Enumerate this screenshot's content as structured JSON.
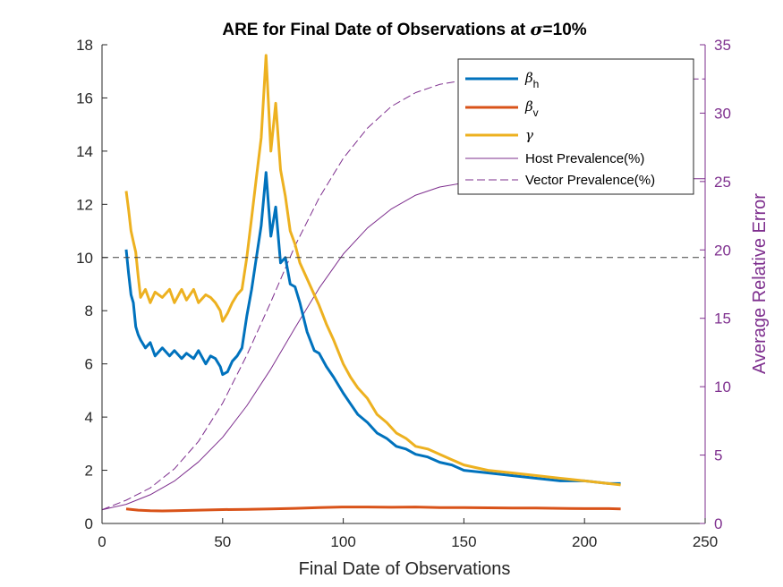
{
  "chart_data": {
    "type": "line",
    "title_prefix": "ARE for Final Date of Observations at ",
    "title_symbol": "σ",
    "title_suffix": "=10%",
    "xlabel": "Final Date of Observations",
    "ylabel_right": "Average Relative Error",
    "xlim": [
      0,
      250
    ],
    "ylim_left": [
      0,
      18
    ],
    "ylim_right": [
      0,
      35
    ],
    "xticks": [
      "0",
      "50",
      "100",
      "150",
      "200",
      "250"
    ],
    "yticks_left": [
      "0",
      "2",
      "4",
      "6",
      "8",
      "10",
      "12",
      "14",
      "16",
      "18"
    ],
    "yticks_right": [
      "0",
      "5",
      "10",
      "15",
      "20",
      "25",
      "30",
      "35"
    ],
    "reference_line": {
      "axis": "left",
      "value": 10
    },
    "colors": {
      "beta_h": "#0072BD",
      "beta_v": "#D95319",
      "gamma": "#EDB120",
      "prevalence": "#7E2F8E",
      "reference": "#404040"
    },
    "legend": {
      "position": "top-right",
      "entries": [
        {
          "symbol": "β",
          "subscript": "h"
        },
        {
          "symbol": "β",
          "subscript": "v"
        },
        {
          "symbol": "γ",
          "subscript": ""
        },
        {
          "label": "Host Prevalence(%)"
        },
        {
          "label": "Vector Prevalence(%)"
        }
      ]
    },
    "series": [
      {
        "name": "beta_h",
        "axis": "left",
        "x": [
          10,
          11,
          12,
          13,
          14,
          15,
          16,
          18,
          20,
          22,
          25,
          28,
          30,
          33,
          35,
          38,
          40,
          43,
          45,
          47,
          49,
          50,
          52,
          54,
          56,
          58,
          60,
          62,
          64,
          66,
          68,
          70,
          72,
          74,
          76,
          78,
          80,
          82,
          85,
          88,
          90,
          93,
          96,
          100,
          103,
          106,
          110,
          114,
          118,
          122,
          126,
          130,
          135,
          140,
          145,
          150,
          160,
          170,
          180,
          190,
          200,
          210,
          215
        ],
        "y": [
          10.3,
          9.4,
          8.6,
          8.3,
          7.4,
          7.1,
          6.9,
          6.6,
          6.8,
          6.3,
          6.6,
          6.3,
          6.5,
          6.2,
          6.4,
          6.2,
          6.5,
          6.0,
          6.3,
          6.2,
          5.9,
          5.6,
          5.7,
          6.1,
          6.3,
          6.6,
          7.8,
          8.8,
          10.0,
          11.2,
          13.2,
          10.8,
          11.9,
          9.8,
          10.0,
          9.0,
          8.9,
          8.3,
          7.2,
          6.5,
          6.4,
          5.9,
          5.5,
          4.9,
          4.5,
          4.1,
          3.8,
          3.4,
          3.2,
          2.9,
          2.8,
          2.6,
          2.5,
          2.3,
          2.2,
          2.0,
          1.9,
          1.8,
          1.7,
          1.6,
          1.6,
          1.5,
          1.5
        ]
      },
      {
        "name": "beta_v",
        "axis": "left",
        "x": [
          10,
          15,
          20,
          25,
          30,
          40,
          50,
          60,
          70,
          80,
          90,
          100,
          110,
          120,
          130,
          140,
          150,
          160,
          170,
          180,
          190,
          200,
          210,
          215
        ],
        "y": [
          0.55,
          0.5,
          0.48,
          0.47,
          0.48,
          0.5,
          0.52,
          0.53,
          0.55,
          0.57,
          0.6,
          0.62,
          0.62,
          0.61,
          0.62,
          0.6,
          0.6,
          0.59,
          0.58,
          0.58,
          0.57,
          0.56,
          0.56,
          0.55
        ]
      },
      {
        "name": "gamma",
        "axis": "left",
        "x": [
          10,
          11,
          12,
          13,
          14,
          15,
          16,
          18,
          20,
          22,
          25,
          28,
          30,
          33,
          35,
          38,
          40,
          43,
          45,
          47,
          49,
          50,
          52,
          54,
          56,
          58,
          60,
          62,
          64,
          66,
          68,
          70,
          72,
          74,
          76,
          78,
          80,
          82,
          85,
          88,
          90,
          93,
          96,
          100,
          103,
          106,
          110,
          114,
          118,
          122,
          126,
          130,
          135,
          140,
          145,
          150,
          160,
          170,
          180,
          190,
          200,
          210,
          215
        ],
        "y": [
          12.5,
          11.8,
          11.0,
          10.6,
          10.2,
          9.3,
          8.5,
          8.8,
          8.3,
          8.7,
          8.5,
          8.8,
          8.3,
          8.8,
          8.4,
          8.8,
          8.3,
          8.6,
          8.5,
          8.3,
          8.0,
          7.6,
          7.9,
          8.3,
          8.6,
          8.8,
          10.0,
          11.5,
          13.0,
          14.5,
          17.6,
          14.0,
          15.8,
          13.3,
          12.3,
          11.0,
          10.5,
          9.8,
          9.2,
          8.6,
          8.2,
          7.5,
          6.9,
          6.0,
          5.5,
          5.1,
          4.7,
          4.1,
          3.8,
          3.4,
          3.2,
          2.9,
          2.8,
          2.6,
          2.4,
          2.2,
          2.0,
          1.9,
          1.8,
          1.7,
          1.6,
          1.5,
          1.45
        ]
      },
      {
        "name": "host_prevalence",
        "axis": "right",
        "style": "solid",
        "x": [
          0,
          10,
          20,
          30,
          40,
          50,
          60,
          70,
          80,
          90,
          100,
          110,
          120,
          130,
          140,
          150,
          160,
          170,
          180,
          200,
          220,
          250
        ],
        "y": [
          1.0,
          1.4,
          2.1,
          3.1,
          4.5,
          6.3,
          8.6,
          11.3,
          14.3,
          17.2,
          19.7,
          21.6,
          23.0,
          24.0,
          24.6,
          24.9,
          25.0,
          25.1,
          25.1,
          25.2,
          25.2,
          25.2
        ]
      },
      {
        "name": "vector_prevalence",
        "axis": "right",
        "style": "dashed",
        "x": [
          0,
          10,
          20,
          30,
          40,
          50,
          60,
          70,
          80,
          90,
          100,
          110,
          120,
          130,
          140,
          150,
          160,
          170,
          180,
          200,
          220,
          250
        ],
        "y": [
          1.0,
          1.7,
          2.6,
          4.0,
          6.0,
          8.8,
          12.3,
          16.2,
          20.3,
          23.8,
          26.7,
          28.9,
          30.5,
          31.5,
          32.1,
          32.4,
          32.5,
          32.5,
          32.5,
          32.5,
          32.5,
          32.5
        ]
      }
    ]
  }
}
